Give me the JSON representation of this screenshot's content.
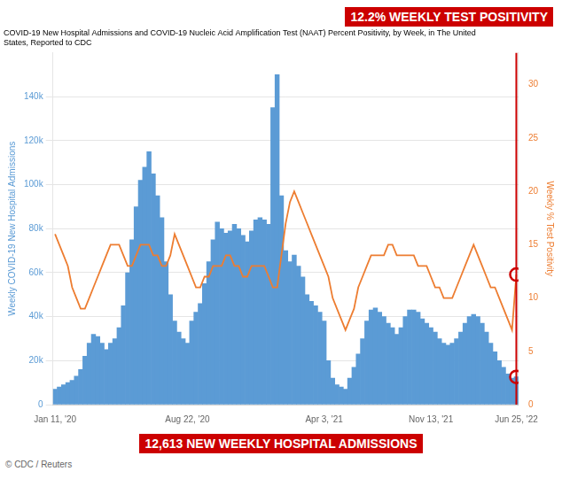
{
  "chart_data": {
    "type": "bar",
    "title": "COVID-19 New Hospital Admissions and COVID-19 Nucleic Acid Amplification Test (NAAT) Percent Positivity, by Week, in The United\nStates, Reported to CDC",
    "ylabel": "Weekly COVID-19 New Hospital Admissions",
    "y2label": "Weekly % Test Positivity",
    "categories": [
      "Jan 11, '20",
      null,
      null,
      null,
      null,
      null,
      null,
      null,
      null,
      null,
      null,
      null,
      null,
      null,
      null,
      null,
      null,
      null,
      null,
      null,
      null,
      null,
      null,
      null,
      null,
      null,
      null,
      null,
      null,
      null,
      null,
      "Aug 22, '20",
      null,
      null,
      null,
      null,
      null,
      null,
      null,
      null,
      null,
      null,
      null,
      null,
      null,
      null,
      null,
      null,
      null,
      null,
      null,
      null,
      null,
      null,
      null,
      null,
      null,
      null,
      null,
      null,
      null,
      null,
      null,
      "Apr 3, '21",
      null,
      null,
      null,
      null,
      null,
      null,
      null,
      null,
      null,
      null,
      null,
      null,
      null,
      null,
      null,
      null,
      null,
      null,
      null,
      null,
      null,
      null,
      null,
      null,
      "Nov 13, '21",
      null,
      null,
      null,
      null,
      null,
      null,
      null,
      null,
      null,
      null,
      null,
      null,
      null,
      null,
      null,
      null,
      null,
      null,
      null,
      "Jun 25, '22"
    ],
    "series": [
      {
        "type": "bar",
        "color": "#5b9bd5",
        "values": [
          7000,
          8000,
          9000,
          10000,
          11000,
          13000,
          16000,
          22000,
          28000,
          32000,
          31000,
          28000,
          25000,
          28000,
          30000,
          35000,
          45000,
          60000,
          75000,
          90000,
          102000,
          108000,
          115000,
          105000,
          95000,
          85000,
          65000,
          50000,
          38000,
          33000,
          30000,
          28000,
          38000,
          42000,
          46000,
          55000,
          65000,
          75000,
          83000,
          80000,
          78000,
          79000,
          82000,
          80000,
          77000,
          74000,
          79000,
          84000,
          85000,
          84000,
          82000,
          135000,
          150000,
          95000,
          70000,
          65000,
          68000,
          63000,
          58000,
          50000,
          47000,
          45000,
          42000,
          38000,
          20000,
          12000,
          9000,
          8000,
          7000,
          12000,
          17000,
          23000,
          30000,
          38000,
          43000,
          44000,
          42000,
          40000,
          37000,
          35000,
          32000,
          35000,
          40000,
          43000,
          43000,
          42000,
          39000,
          37000,
          35000,
          33000,
          30000,
          28000,
          27000,
          28000,
          30000,
          33000,
          37000,
          40000,
          41000,
          40000,
          37000,
          33000,
          28000,
          24000,
          20000,
          17000,
          14000,
          12000,
          12613
        ]
      },
      {
        "type": "line",
        "color": "#ed7d31",
        "axis": "y2",
        "values": [
          16,
          15,
          14,
          13,
          11,
          10,
          9,
          9,
          10,
          11,
          12,
          13,
          14,
          15,
          15,
          15,
          14,
          13,
          13,
          14,
          15,
          15,
          15,
          14,
          14,
          13,
          13,
          14,
          16,
          15,
          14,
          13,
          12,
          11,
          11,
          12,
          12,
          13,
          13,
          13,
          14,
          14,
          13,
          13,
          12,
          12,
          13,
          13,
          13,
          13,
          12,
          11,
          11,
          14,
          17,
          19,
          20,
          19,
          18,
          17,
          16,
          15,
          14,
          13,
          12,
          10,
          9,
          8,
          7,
          8,
          9,
          11,
          12,
          13,
          14,
          14,
          14,
          14,
          15,
          15,
          14,
          14,
          14,
          14,
          14,
          13,
          13,
          13,
          12,
          11,
          11,
          10,
          10,
          10,
          11,
          12,
          13,
          14,
          15,
          14,
          13,
          12,
          11,
          11,
          10,
          9,
          8,
          7,
          12.2
        ]
      }
    ],
    "ylim": [
      0,
      160000
    ],
    "yticks": [
      0,
      {
        "value": 20000,
        "label": "20k"
      },
      {
        "value": 40000,
        "label": "40k"
      },
      {
        "value": 60000,
        "label": "60k"
      },
      {
        "value": 80000,
        "label": "80k"
      },
      {
        "value": 100000,
        "label": "100k"
      },
      {
        "value": 120000,
        "label": "120k"
      },
      {
        "value": 140000,
        "label": "140k"
      }
    ],
    "y2lim": [
      0,
      33
    ],
    "y2ticks": [
      0,
      5,
      10,
      15,
      20,
      25,
      30
    ],
    "grid": true,
    "annotations": [
      {
        "text": "12.2% WEEKLY TEST POSITIVITY",
        "color": "#cc0000"
      },
      {
        "text": "12,613 NEW WEEKLY HOSPITAL ADMISSIONS",
        "color": "#cc0000"
      },
      {
        "text": "© CDC / Reuters"
      }
    ]
  }
}
